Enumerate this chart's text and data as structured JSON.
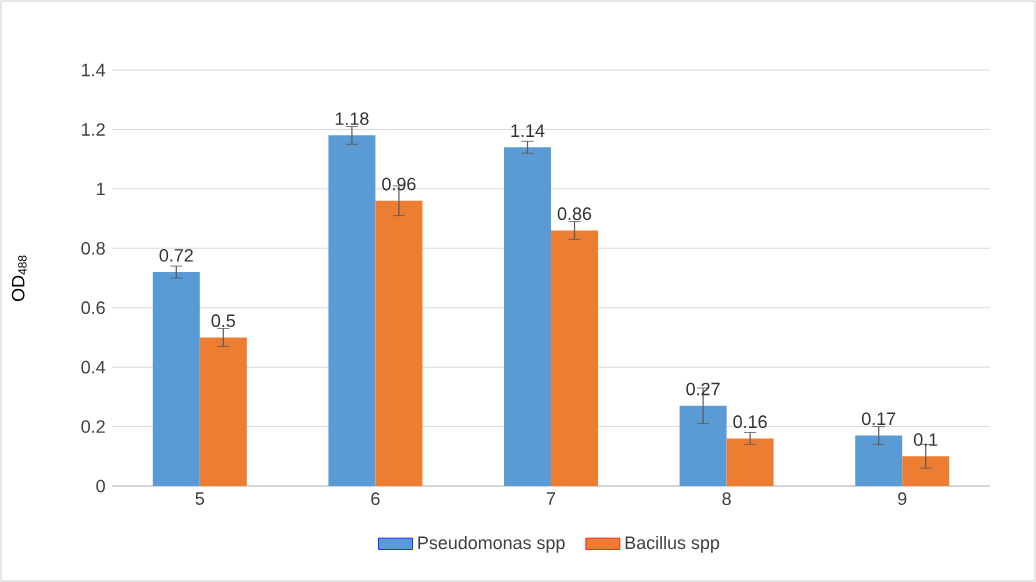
{
  "chart_data": {
    "type": "bar",
    "ylabel": "OD$_{488}$",
    "categories": [
      "5",
      "6",
      "7",
      "8",
      "9"
    ],
    "series": [
      {
        "name": "Pseudomonas spp",
        "color": "#5b9bd5",
        "values": [
          0.72,
          1.18,
          1.14,
          0.27,
          0.17
        ],
        "errors": [
          0.02,
          0.03,
          0.02,
          0.06,
          0.03
        ]
      },
      {
        "name": "Bacillus spp",
        "color": "#ed7d31",
        "values": [
          0.5,
          0.96,
          0.86,
          0.16,
          0.1
        ],
        "errors": [
          0.03,
          0.05,
          0.03,
          0.02,
          0.04
        ]
      }
    ],
    "ylim": [
      0,
      1.4
    ],
    "yticks": [
      0,
      0.2,
      0.4,
      0.6,
      0.8,
      1,
      1.2,
      1.4
    ],
    "grid": "y",
    "legend": "bottom",
    "data_labels": true
  }
}
